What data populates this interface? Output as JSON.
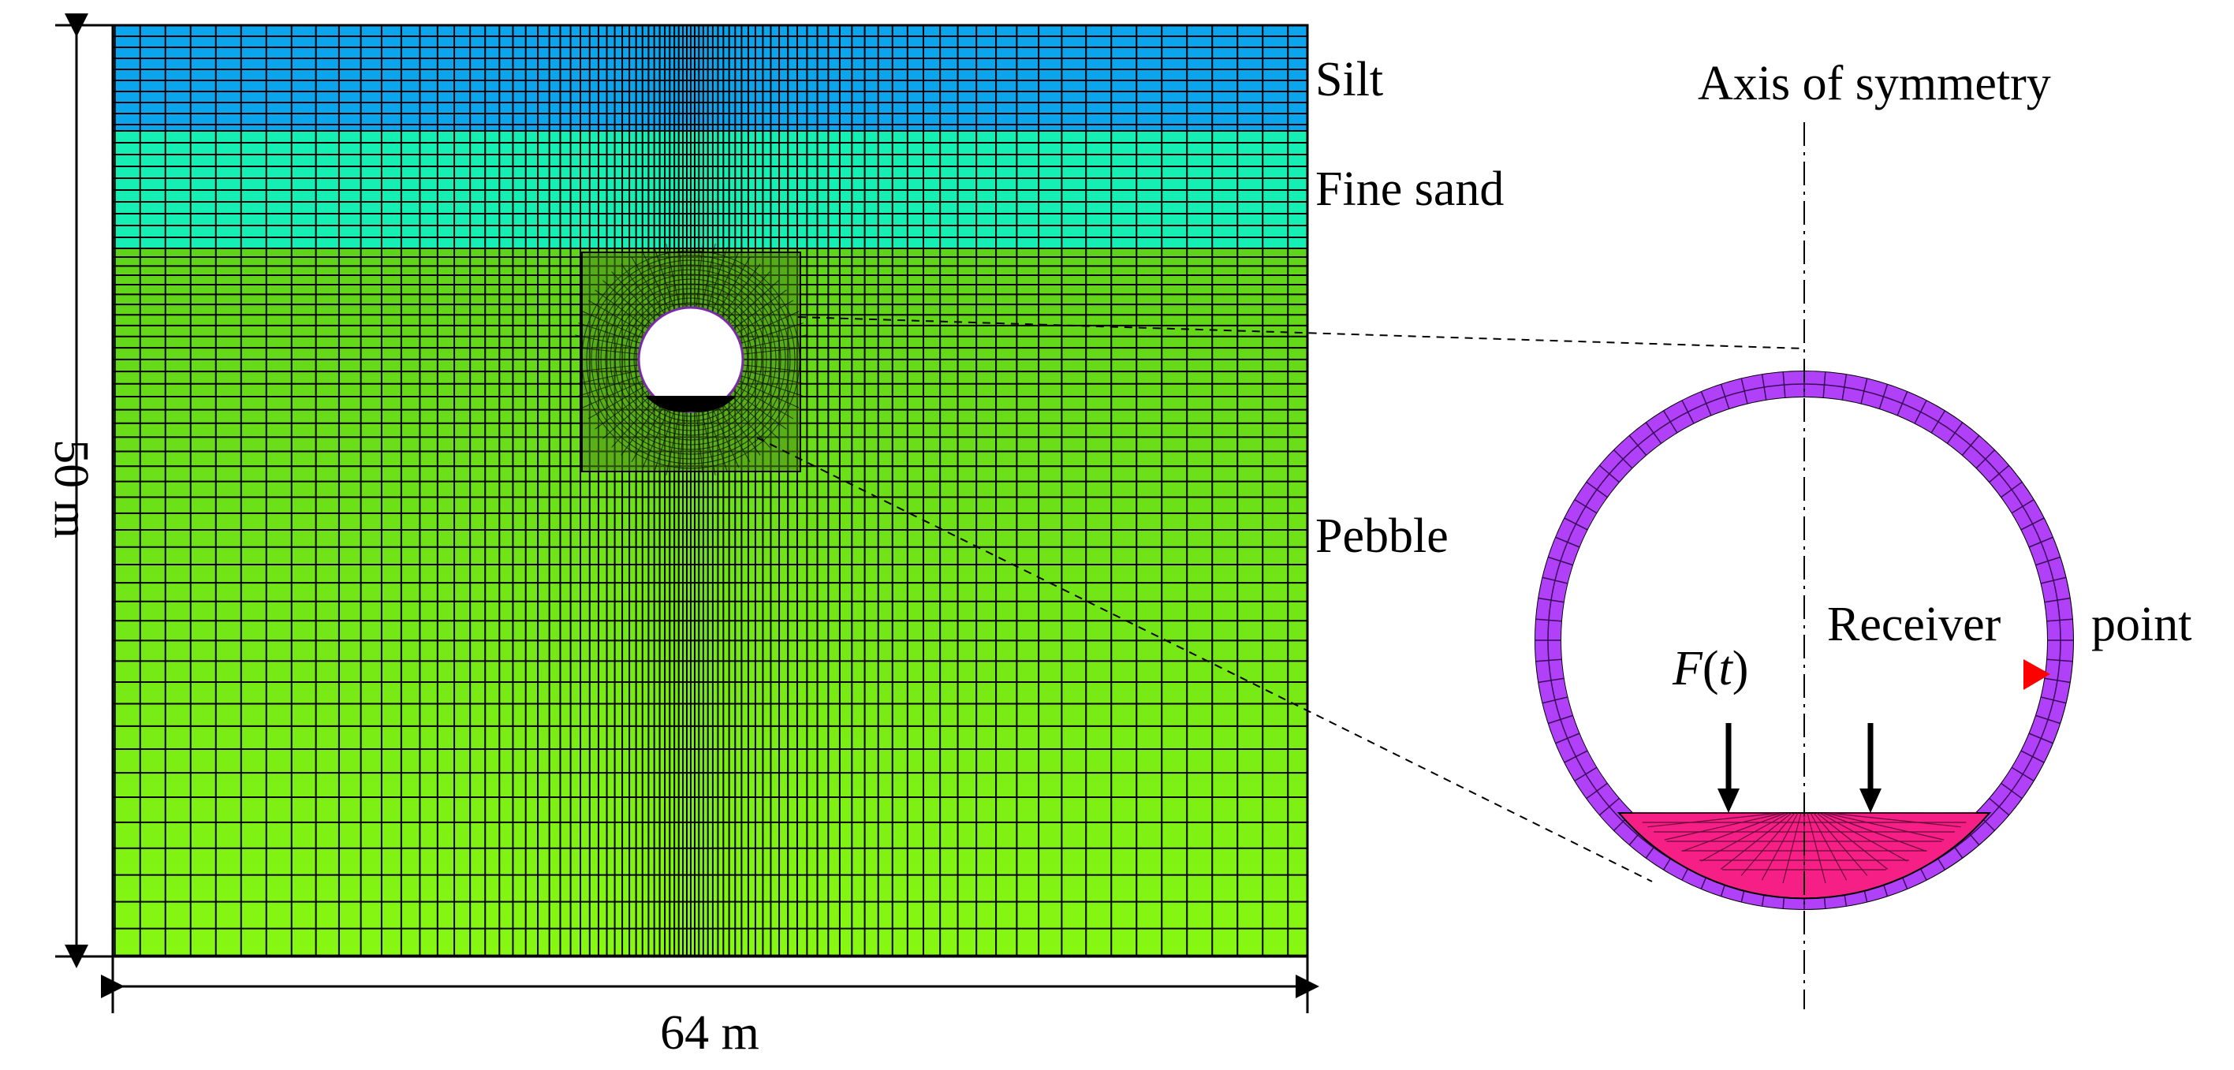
{
  "labels": {
    "silt": "Silt",
    "fine_sand": "Fine sand",
    "pebble": "Pebble",
    "axis_of_symmetry": "Axis of symmetry",
    "receiver": "Receiver",
    "point": "point",
    "force_f": "F",
    "force_open": "(",
    "force_t": "t",
    "force_close": ")",
    "height_dim": "50 m",
    "width_dim": "64 m"
  },
  "soil_layers": [
    {
      "name": "Silt",
      "color": "#0aa5ec"
    },
    {
      "name": "Fine sand",
      "color": "#16efb4"
    },
    {
      "name": "Pebble (upper)",
      "color": "#5fd41a"
    },
    {
      "name": "Pebble (lower)",
      "color": "#86f812"
    }
  ],
  "colors": {
    "mesh_line": "#000000",
    "lining": "#b041f8",
    "track_bed": "#f51f86",
    "receiver_marker": "#ff0000",
    "leader_line": "#000000"
  },
  "icons": {
    "receiver_marker": "red-triangle-icon",
    "load_arrows": "down-arrow-icon"
  }
}
